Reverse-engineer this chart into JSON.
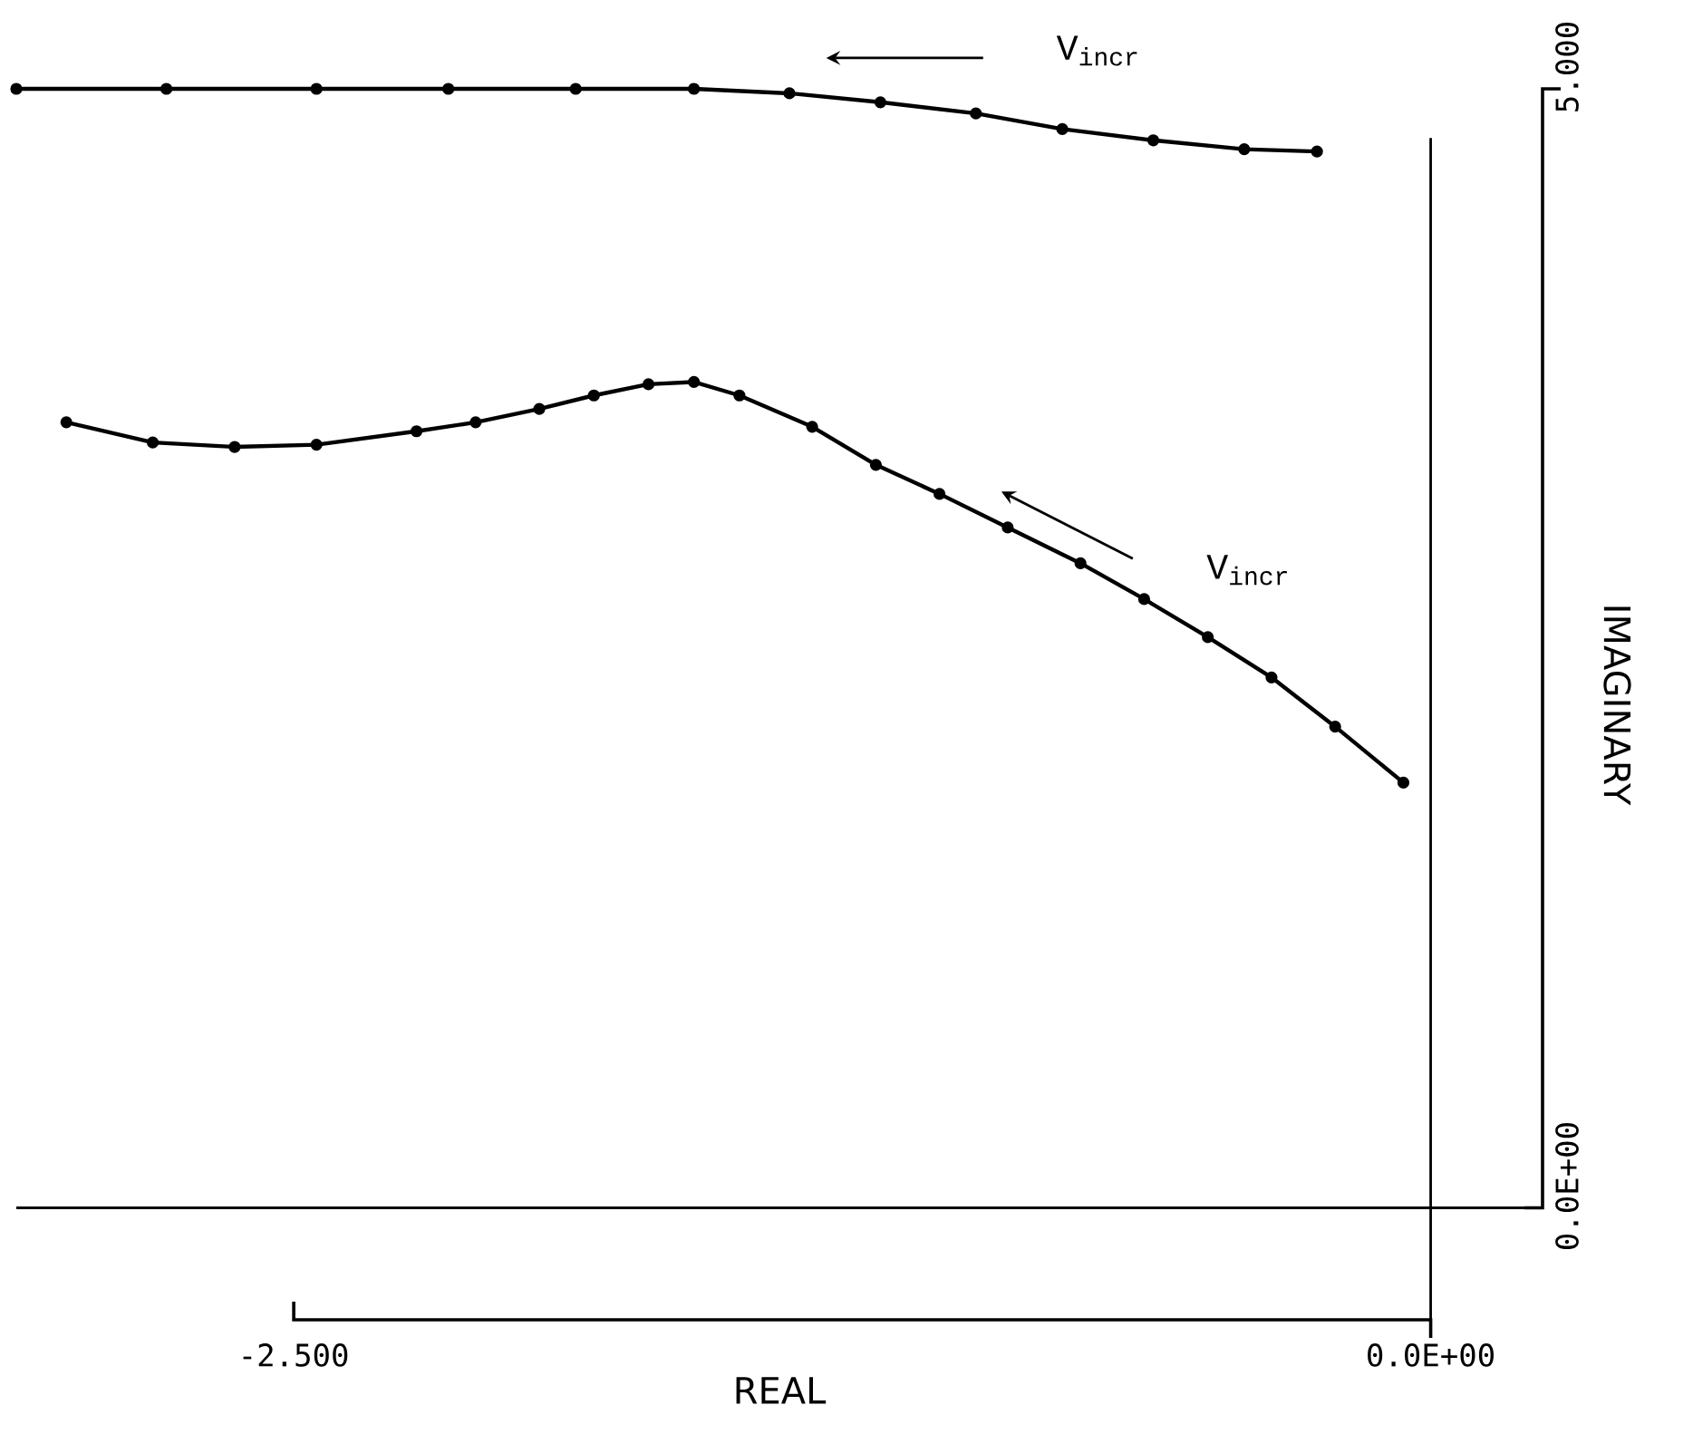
{
  "chart_data": {
    "type": "line",
    "xlabel": "REAL",
    "ylabel": "IMAGINARY",
    "xlim": [
      -3.11,
      0.246
    ],
    "ylim": [
      -0.5,
      5
    ],
    "xticks": [
      {
        "value": -2.5,
        "label": "-2.500"
      },
      {
        "value": 0,
        "label": "0.0E+00"
      }
    ],
    "yticks": [
      {
        "value": 0,
        "label": "0.0E+00"
      },
      {
        "value": 5,
        "label": "5.000"
      }
    ],
    "marker": "circle",
    "line_style": "solid",
    "annotations": [
      "V$_{incr}$",
      "V$_{incr}$"
    ],
    "series": [
      {
        "color": "#000000",
        "x": [
          -3.11,
          -2.78,
          -2.45,
          -2.16,
          -1.88,
          -1.62,
          -1.41,
          -1.21,
          -1.0,
          -0.81,
          -0.61,
          -0.41,
          -0.25
        ],
        "values": [
          5.0,
          5.0,
          5.0,
          5.0,
          5.0,
          5.0,
          4.98,
          4.94,
          4.89,
          4.82,
          4.77,
          4.73,
          4.72
        ]
      },
      {
        "color": "#000000",
        "x": [
          -3.0,
          -2.81,
          -2.63,
          -2.45,
          -2.23,
          -2.1,
          -1.96,
          -1.84,
          -1.72,
          -1.62,
          -1.52,
          -1.36,
          -1.22,
          -1.08,
          -0.93,
          -0.77,
          -0.63,
          -0.49,
          -0.35,
          -0.21,
          -0.06
        ],
        "values": [
          3.51,
          3.42,
          3.4,
          3.41,
          3.47,
          3.51,
          3.57,
          3.63,
          3.68,
          3.69,
          3.63,
          3.49,
          3.32,
          3.19,
          3.04,
          2.88,
          2.72,
          2.55,
          2.37,
          2.15,
          1.9
        ]
      }
    ]
  }
}
